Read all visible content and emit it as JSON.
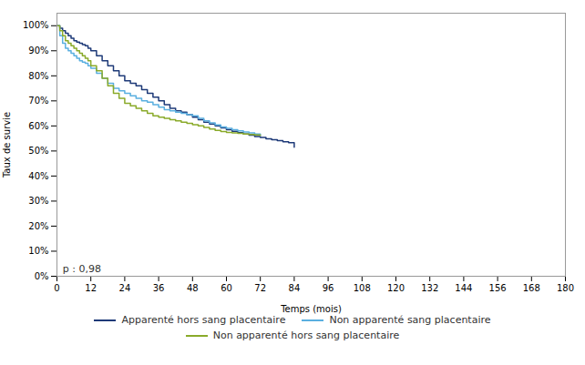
{
  "chart_data": {
    "type": "step",
    "xlabel": "Temps (mois)",
    "ylabel": "Taux de survie",
    "xlim": [
      0,
      180
    ],
    "ylim": [
      0.0,
      1.05
    ],
    "xticks": [
      0,
      12,
      24,
      36,
      48,
      60,
      72,
      84,
      96,
      108,
      120,
      132,
      144,
      156,
      168,
      180
    ],
    "yticks": [
      {
        "value": 0,
        "label": "0%"
      },
      {
        "value": 0.1,
        "label": "10%"
      },
      {
        "value": 0.2,
        "label": "20%"
      },
      {
        "value": 0.3,
        "label": "30%"
      },
      {
        "value": 0.4,
        "label": "40%"
      },
      {
        "value": 0.5,
        "label": "50%"
      },
      {
        "value": 0.6,
        "label": "60%"
      },
      {
        "value": 0.7,
        "label": "70%"
      },
      {
        "value": 0.8,
        "label": "80%"
      },
      {
        "value": 0.9,
        "label": "90%"
      },
      {
        "value": 1.0,
        "label": "100%"
      }
    ],
    "grid": false,
    "legend": "bottom",
    "annotations": [
      {
        "text": "p : 0,98",
        "x": 2,
        "y": 0.018,
        "color": "#333333"
      }
    ],
    "series": [
      {
        "name": "Apparenté hors sang placentaire",
        "color": "#1e3a78",
        "x": [
          0,
          1,
          2,
          3,
          4,
          5,
          6,
          7,
          8,
          9,
          10,
          11,
          12,
          14,
          16,
          18,
          20,
          22,
          24,
          26,
          28,
          30,
          32,
          34,
          36,
          38,
          40,
          42,
          44,
          46,
          48,
          50,
          52,
          54,
          56,
          58,
          60,
          62,
          64,
          66,
          68,
          70,
          72,
          74,
          76,
          78,
          80,
          82,
          84
        ],
        "values": [
          1.0,
          0.99,
          0.98,
          0.97,
          0.96,
          0.95,
          0.94,
          0.935,
          0.93,
          0.925,
          0.92,
          0.91,
          0.9,
          0.88,
          0.86,
          0.84,
          0.82,
          0.8,
          0.78,
          0.77,
          0.76,
          0.745,
          0.73,
          0.715,
          0.7,
          0.685,
          0.67,
          0.66,
          0.655,
          0.645,
          0.635,
          0.625,
          0.615,
          0.608,
          0.6,
          0.592,
          0.585,
          0.579,
          0.573,
          0.568,
          0.563,
          0.558,
          0.554,
          0.549,
          0.545,
          0.541,
          0.537,
          0.533,
          0.515
        ]
      },
      {
        "name": "Non apparenté sang placentaire",
        "color": "#5aafe0",
        "x": [
          0,
          1,
          2,
          3,
          4,
          5,
          6,
          7,
          8,
          9,
          10,
          11,
          12,
          14,
          16,
          18,
          20,
          22,
          24,
          26,
          28,
          30,
          32,
          34,
          36,
          38,
          40,
          42,
          44,
          46,
          48,
          50,
          52,
          54,
          56,
          58,
          60,
          62,
          64,
          66,
          68,
          70,
          72
        ],
        "values": [
          1.0,
          0.96,
          0.93,
          0.91,
          0.9,
          0.89,
          0.88,
          0.87,
          0.86,
          0.855,
          0.85,
          0.84,
          0.83,
          0.81,
          0.79,
          0.77,
          0.75,
          0.74,
          0.73,
          0.72,
          0.71,
          0.7,
          0.695,
          0.685,
          0.675,
          0.665,
          0.66,
          0.655,
          0.65,
          0.645,
          0.64,
          0.63,
          0.62,
          0.612,
          0.604,
          0.596,
          0.59,
          0.585,
          0.58,
          0.576,
          0.572,
          0.568,
          0.562
        ]
      },
      {
        "name": "Non apparenté hors sang placentaire",
        "color": "#8aaa2a",
        "x": [
          0,
          1,
          2,
          3,
          4,
          5,
          6,
          7,
          8,
          9,
          10,
          11,
          12,
          14,
          16,
          18,
          20,
          22,
          24,
          26,
          28,
          30,
          32,
          34,
          36,
          38,
          40,
          42,
          44,
          46,
          48,
          50,
          52,
          54,
          56,
          58,
          60,
          62,
          64,
          66,
          68,
          70,
          72
        ],
        "values": [
          1.0,
          0.98,
          0.96,
          0.94,
          0.93,
          0.92,
          0.91,
          0.9,
          0.89,
          0.88,
          0.87,
          0.86,
          0.84,
          0.82,
          0.79,
          0.76,
          0.73,
          0.71,
          0.69,
          0.68,
          0.67,
          0.66,
          0.65,
          0.64,
          0.635,
          0.63,
          0.625,
          0.62,
          0.615,
          0.61,
          0.605,
          0.6,
          0.594,
          0.588,
          0.582,
          0.578,
          0.574,
          0.572,
          0.57,
          0.568,
          0.566,
          0.564,
          0.562
        ]
      }
    ]
  }
}
